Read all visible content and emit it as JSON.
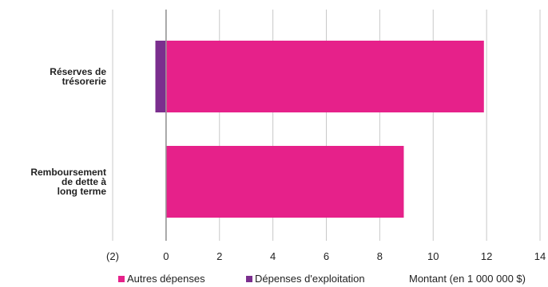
{
  "chart_data": {
    "type": "bar",
    "orientation": "horizontal",
    "stacked": true,
    "categories": [
      [
        "Réserves de",
        "trésorerie"
      ],
      [
        "Remboursement",
        "de dette à",
        "long terme"
      ]
    ],
    "series": [
      {
        "name": "Autres dépenses",
        "color": "#e6218a",
        "values": [
          11.9,
          8.9
        ]
      },
      {
        "name": "Dépenses d'exploitation",
        "color": "#7b2e8e",
        "values": [
          -0.4,
          0
        ]
      }
    ],
    "xlim": [
      -2,
      14
    ],
    "xticks": [
      -2,
      0,
      2,
      4,
      6,
      8,
      10,
      12,
      14
    ],
    "xtick_labels": [
      "(2)",
      "0",
      "2",
      "4",
      "6",
      "8",
      "10",
      "12",
      "14"
    ],
    "xlabel": "Montant (en 1 000 000 $)",
    "grid": true,
    "legend_position": "bottom"
  }
}
